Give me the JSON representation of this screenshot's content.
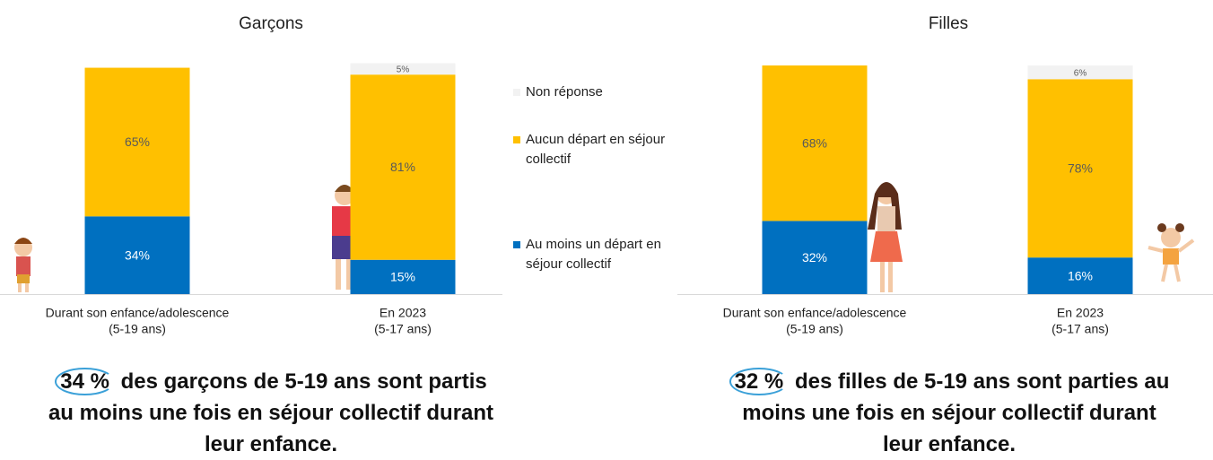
{
  "chart_data": [
    {
      "type": "bar",
      "stacked": true,
      "title": "Garçons",
      "categories": [
        "Durant son enfance/adolescence",
        "En 2023"
      ],
      "category_sublabels": [
        "(5-19 ans)",
        "(5-17 ans)"
      ],
      "ylim": [
        0,
        100
      ],
      "series": [
        {
          "name": "Au moins un départ en séjour collectif",
          "color": "#0070C0",
          "values": [
            34,
            15
          ],
          "value_labels": [
            "34%",
            "15%"
          ]
        },
        {
          "name": "Aucun départ en séjour collectif",
          "color": "#FFC000",
          "values": [
            65,
            81
          ],
          "value_labels": [
            "65%",
            "81%"
          ]
        },
        {
          "name": "Non réponse",
          "color": "#F2F2F2",
          "values": [
            null,
            5
          ],
          "value_labels": [
            null,
            "5%"
          ]
        }
      ],
      "caption": {
        "highlight": "34 %",
        "text": "des garçons de 5-19 ans sont partis au moins une fois en séjour collectif durant leur enfance."
      }
    },
    {
      "type": "bar",
      "stacked": true,
      "title": "Filles",
      "categories": [
        "Durant son enfance/adolescence",
        "En 2023"
      ],
      "category_sublabels": [
        "(5-19 ans)",
        "(5-17 ans)"
      ],
      "ylim": [
        0,
        100
      ],
      "series": [
        {
          "color": "#0070C0",
          "values": [
            32,
            16
          ],
          "value_labels": [
            "32%",
            "16%"
          ]
        },
        {
          "color": "#FFC000",
          "values": [
            68,
            78
          ],
          "value_labels": [
            "68%",
            "78%"
          ]
        },
        {
          "color": "#F2F2F2",
          "values": [
            null,
            6
          ],
          "value_labels": [
            null,
            "6%"
          ]
        }
      ],
      "caption": {
        "highlight": "32 %",
        "text": "des filles de 5-19 ans sont parties au moins une fois en séjour collectif durant leur enfance."
      }
    }
  ]
}
